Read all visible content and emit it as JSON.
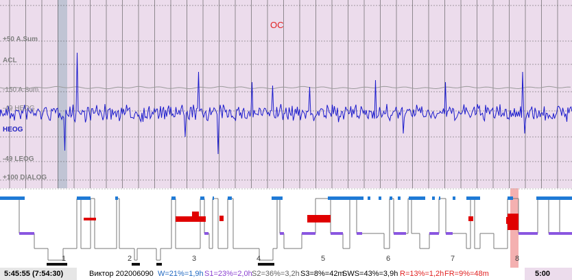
{
  "signal_panel": {
    "channel_labels": [
      "+50 A.Sum",
      "ACL",
      "-150 A.Sum",
      "-49 HEOG",
      "HEOG",
      "-49 LEOG",
      "+100 DIALOG"
    ],
    "stage_marker": "OC",
    "colors": {
      "background": "#ecdcec",
      "trace": "#1a1acc",
      "grid": "#505050",
      "highlight": "#c0c4d4"
    }
  },
  "hypnogram": {
    "hour_labels": [
      "1",
      "2",
      "3",
      "4",
      "5",
      "6",
      "7",
      "8"
    ],
    "stage_colors": {
      "wake": "#1f7ad6",
      "s1": "#8a56e0",
      "s2_s3": "#707070",
      "rem": "#e00000",
      "cursor": "#f4b0b0",
      "cursor_arrow": "#d00000"
    }
  },
  "status": {
    "time": "5:45:55 (7:54:30)",
    "patient": "Виктор 202006090",
    "w": "W=21%=1,9h",
    "s1": "S1=23%=2,0h",
    "s2": "S2=36%=3,2h",
    "s3": "S3=8%=42m",
    "sws": "SWS=43%=3,9h",
    "r": "R=13%=1,2h",
    "fr": "FR=9%=48m",
    "end_time": "5:00"
  }
}
